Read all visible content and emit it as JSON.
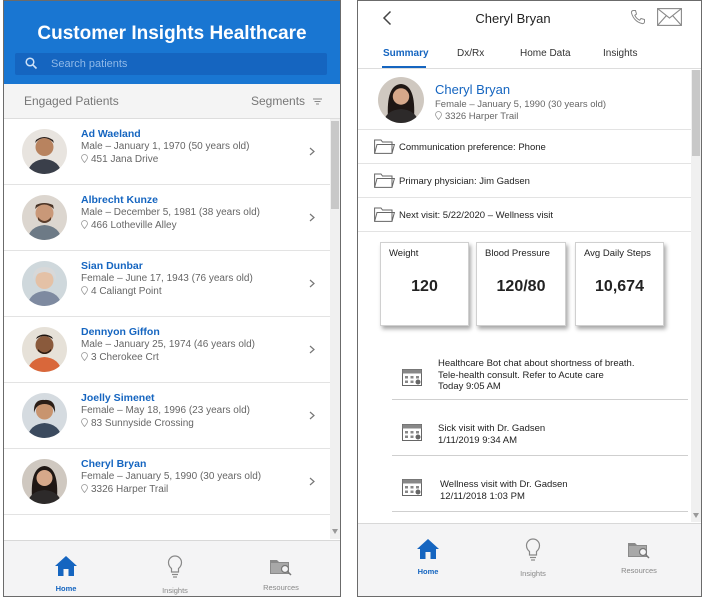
{
  "left": {
    "app_title": "Customer Insights Healthcare",
    "search": {
      "placeholder": "Search patients"
    },
    "list_header": {
      "title": "Engaged Patients",
      "segments_label": "Segments"
    },
    "patients": [
      {
        "name": "Ad Waeland",
        "info": "Male – January 1, 1970 (50 years old)",
        "address": "451 Jana Drive"
      },
      {
        "name": "Albrecht Kunze",
        "info": "Male – December 5, 1981 (38 years old)",
        "address": "466 Lotheville Alley"
      },
      {
        "name": "Sian Dunbar",
        "info": "Female – June 17, 1943 (76 years old)",
        "address": "4 Caliangt Point"
      },
      {
        "name": "Dennyon Giffon",
        "info": "Male – January 25, 1974 (46 years old)",
        "address": "3 Cherokee Crt"
      },
      {
        "name": "Joelly Simenet",
        "info": "Female – May 18, 1996 (23 years old)",
        "address": "83 Sunnyside Crossing"
      },
      {
        "name": "Cheryl Bryan",
        "info": "Female – January 5, 1990 (30 years old)",
        "address": "3326 Harper Trail"
      }
    ],
    "tabs": [
      {
        "label": "Home",
        "icon": "home-icon",
        "active": true
      },
      {
        "label": "Insights",
        "icon": "lightbulb-icon",
        "active": false
      },
      {
        "label": "Resources",
        "icon": "folder-search-icon",
        "active": false
      }
    ]
  },
  "right": {
    "header_title": "Cheryl Bryan",
    "tabs": [
      "Summary",
      "Dx/Rx",
      "Home Data",
      "Insights"
    ],
    "active_tab": "Summary",
    "profile": {
      "name": "Cheryl Bryan",
      "info": "Female – January 5, 1990 (30 years old)",
      "address": "3326 Harper Trail"
    },
    "info_rows": [
      "Communication preference: Phone",
      "Primary physician: Jim Gadsen",
      "Next visit: 5/22/2020 – Wellness visit"
    ],
    "metrics": [
      {
        "label": "Weight",
        "value": "120"
      },
      {
        "label": "Blood Pressure",
        "value": "120/80"
      },
      {
        "label": "Avg Daily Steps",
        "value": "10,674"
      }
    ],
    "activities": [
      {
        "lines": [
          "Healthcare Bot chat about shortness of breath.",
          "Tele-health consult. Refer to Acute care",
          "Today 9:05 AM"
        ]
      },
      {
        "lines": [
          "Sick visit with Dr. Gadsen",
          "1/11/2019 9:34 AM"
        ]
      },
      {
        "lines": [
          "Wellness visit with Dr. Gadsen",
          "12/11/2018 1:03 PM"
        ]
      }
    ],
    "bottom_tabs": [
      {
        "label": "Home",
        "icon": "home-icon",
        "active": true
      },
      {
        "label": "Insights",
        "icon": "lightbulb-icon",
        "active": false
      },
      {
        "label": "Resources",
        "icon": "folder-search-icon",
        "active": false
      }
    ]
  },
  "colors": {
    "brand": "#1976d2",
    "link": "#1565c0"
  }
}
